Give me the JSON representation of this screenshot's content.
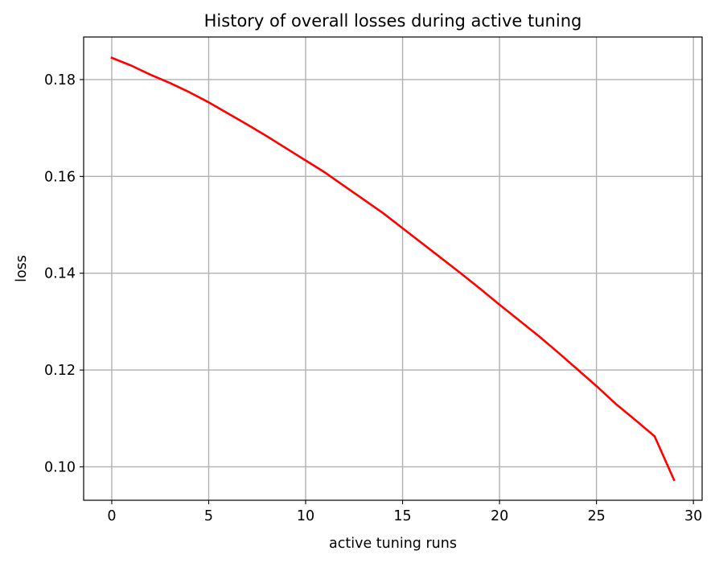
{
  "chart_data": {
    "type": "line",
    "title": "History of overall losses during active tuning",
    "xlabel": "active tuning runs",
    "ylabel": "loss",
    "xlim": [
      -1.45,
      30.45
    ],
    "ylim": [
      0.0931,
      0.1888
    ],
    "xticks": [
      0,
      5,
      10,
      15,
      20,
      25,
      30
    ],
    "xtick_labels": [
      "0",
      "5",
      "10",
      "15",
      "20",
      "25",
      "30"
    ],
    "yticks": [
      0.1,
      0.12,
      0.14,
      0.16,
      0.18
    ],
    "ytick_labels": [
      "0.10",
      "0.12",
      "0.14",
      "0.16",
      "0.18"
    ],
    "grid": true,
    "series": [
      {
        "color": "#ff0000",
        "x": [
          0,
          1,
          2,
          3,
          4,
          5,
          6,
          7,
          8,
          9,
          10,
          11,
          12,
          13,
          14,
          15,
          16,
          17,
          18,
          19,
          20,
          21,
          22,
          23,
          24,
          25,
          26,
          27,
          28,
          29
        ],
        "values": [
          0.1845,
          0.1829,
          0.181,
          0.1793,
          0.1774,
          0.1753,
          0.173,
          0.1707,
          0.1683,
          0.1658,
          0.1633,
          0.1608,
          0.158,
          0.1552,
          0.1524,
          0.1493,
          0.1462,
          0.1431,
          0.14,
          0.1368,
          0.1335,
          0.1303,
          0.1271,
          0.1237,
          0.1202,
          0.1167,
          0.113,
          0.1097,
          0.1063,
          0.0973
        ]
      }
    ]
  }
}
